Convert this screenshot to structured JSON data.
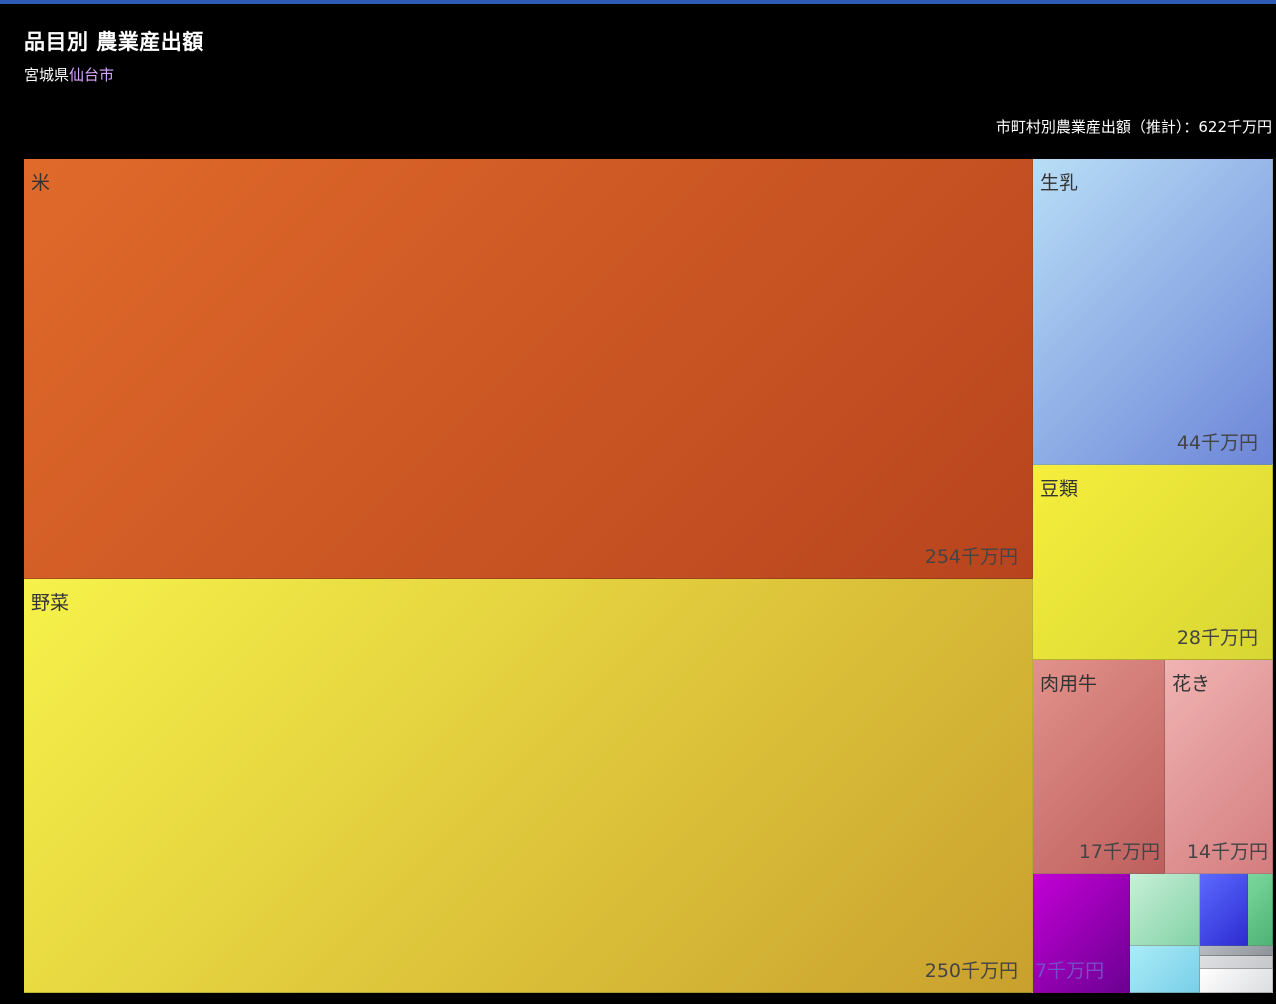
{
  "chart_data": {
    "type": "treemap",
    "title": "品目別 農業産出額",
    "subtitle_prefecture": "宮城県",
    "subtitle_city": "仙台市",
    "total_label": "市町村別農業産出額（推計）：622千万円",
    "unit": "千万円",
    "items": [
      {
        "label": "米",
        "value": 254,
        "value_label": "254千万円",
        "color_a": "#e06a2a",
        "color_b": "#b8441e"
      },
      {
        "label": "野菜",
        "value": 250,
        "value_label": "250千万円",
        "color_a": "#f6f24a",
        "color_b": "#c9a02e"
      },
      {
        "label": "生乳",
        "value": 44,
        "value_label": "44千万円",
        "color_a": "#b8def6",
        "color_b": "#6d86d8"
      },
      {
        "label": "豆類",
        "value": 28,
        "value_label": "28千万円",
        "color_a": "#f5ee3c",
        "color_b": "#d8d634"
      },
      {
        "label": "肉用牛",
        "value": 17,
        "value_label": "17千万円",
        "color_a": "#e2928a",
        "color_b": "#bd5f5e"
      },
      {
        "label": "花き",
        "value": 14,
        "value_label": "14千万円",
        "color_a": "#f0b4b2",
        "color_b": "#d47d7f"
      },
      {
        "label": "",
        "value": 7,
        "value_label": "7千万円",
        "color_a": "#c300d6",
        "color_b": "#6b0091"
      },
      {
        "label": "",
        "value": 3,
        "value_label": "",
        "color_a": "#c8f0d8",
        "color_b": "#82d2a6"
      },
      {
        "label": "",
        "value": 2,
        "value_label": "",
        "color_a": "#5c6bff",
        "color_b": "#2d2bd0"
      },
      {
        "label": "",
        "value": 0.5,
        "value_label": "",
        "color_a": "#7bd89c",
        "color_b": "#4fb276"
      },
      {
        "label": "",
        "value": 2,
        "value_label": "",
        "color_a": "#a9ecf7",
        "color_b": "#7acfe8"
      },
      {
        "label": "",
        "value": 0.3,
        "value_label": "",
        "color_a": "#b9bcc2",
        "color_b": "#8e939a"
      },
      {
        "label": "",
        "value": 0.2,
        "value_label": "",
        "color_a": "#dfe0e2",
        "color_b": "#c5c7cb"
      },
      {
        "label": "",
        "value": 0.8,
        "value_label": "",
        "color_a": "#ffffff",
        "color_b": "#dcdde0"
      }
    ]
  }
}
